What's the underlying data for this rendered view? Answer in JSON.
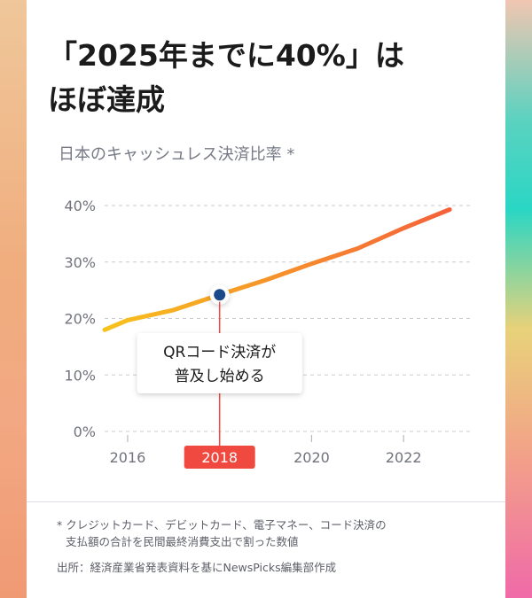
{
  "headline": {
    "line1": "「2025年までに40%」は",
    "line2": "ほぼ達成"
  },
  "chart_data": {
    "type": "line",
    "title": "日本のキャッシュレス決済比率 *",
    "xlabel": "",
    "ylabel": "",
    "x": [
      2015.5,
      2016,
      2017,
      2018,
      2019,
      2020,
      2021,
      2022,
      2023
    ],
    "values": [
      18.0,
      19.7,
      21.5,
      24.2,
      26.8,
      29.7,
      32.4,
      36.0,
      39.3
    ],
    "xlim": [
      2015.5,
      2023.5
    ],
    "ylim": [
      0,
      40
    ],
    "yticks": [
      "0%",
      "10%",
      "20%",
      "30%",
      "40%"
    ],
    "ytick_values": [
      0,
      10,
      20,
      30,
      40
    ],
    "xticks": [
      "2016",
      "2018",
      "2020",
      "2022"
    ],
    "xtick_values": [
      2016,
      2018,
      2020,
      2022
    ],
    "highlight_tick": "2018",
    "grid": true,
    "line_colors": [
      "#f7c21c",
      "#f55a3c"
    ],
    "highlight_color": "#f0493f",
    "marker": {
      "x": 2018,
      "y": 24.2,
      "color": "#1b4a8a"
    },
    "annotation": {
      "line1": "QRコード決済が",
      "line2": "普及し始める"
    }
  },
  "footer": {
    "note_line1": "* クレジットカード、デビットカード、電子マネー、コード決済の",
    "note_line2": "支払額の合計を民間最終消費支出で割った数値",
    "source": "出所：経済産業省発表資料を基にNewsPicks編集部作成"
  }
}
